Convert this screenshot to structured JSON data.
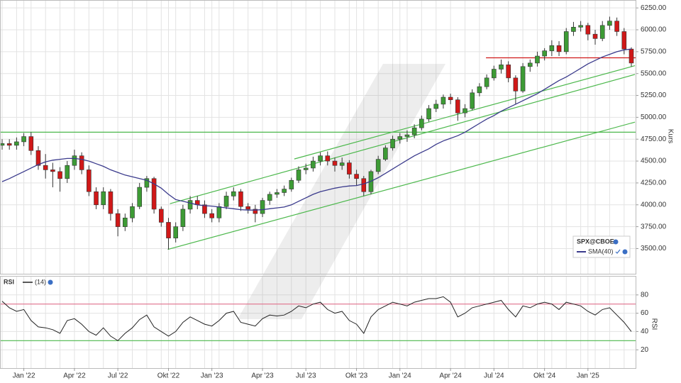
{
  "chart_data": [
    {
      "type": "candlestick",
      "categories": [
        null,
        null,
        null,
        "Jan '22",
        null,
        null,
        null,
        null,
        null,
        null,
        "Apr '22",
        null,
        null,
        null,
        null,
        null,
        "Jul '22",
        null,
        null,
        null,
        null,
        null,
        null,
        "Okt '22",
        null,
        null,
        null,
        null,
        null,
        "Jan '23",
        null,
        null,
        null,
        null,
        null,
        null,
        "Apr '23",
        null,
        null,
        null,
        null,
        null,
        "Jul '23",
        null,
        null,
        null,
        null,
        null,
        null,
        "Okt '23",
        null,
        null,
        null,
        null,
        null,
        "Jan '24",
        null,
        null,
        null,
        null,
        null,
        null,
        "Apr '24",
        null,
        null,
        null,
        null,
        null,
        "Jul '24",
        null,
        null,
        null,
        null,
        null,
        null,
        "Okt '24",
        null,
        null,
        null,
        null,
        null,
        "Jan '25",
        null,
        null,
        null,
        null,
        null,
        null
      ],
      "series": [
        {
          "name": "SPX@CBOE",
          "up_color": "#3d9b35",
          "down_color": "#d01818",
          "open": [
            4680,
            4700,
            4680,
            4720,
            4780,
            4620,
            4450,
            4400,
            4380,
            4300,
            4450,
            4560,
            4400,
            4150,
            4000,
            4150,
            3900,
            3750,
            3850,
            3980,
            4200,
            4300,
            3950,
            3800,
            3620,
            3750,
            3950,
            4050,
            4000,
            3900,
            3850,
            3980,
            4100,
            4150,
            3980,
            3950,
            3900,
            4050,
            4120,
            4140,
            4180,
            4280,
            4400,
            4420,
            4500,
            4560,
            4500,
            4450,
            4480,
            4350,
            4300,
            4150,
            4380,
            4520,
            4650,
            4750,
            4780,
            4800,
            4880,
            4980,
            5100,
            5150,
            5230,
            5200,
            5050,
            5100,
            5280,
            5350,
            5450,
            5550,
            5600,
            5450,
            5300,
            5580,
            5620,
            5700,
            5760,
            5820,
            5750,
            5980,
            6030,
            6050,
            5950,
            5900,
            6050,
            6100,
            5980,
            5780
          ],
          "high": [
            4750,
            4750,
            4770,
            4820,
            4830,
            4670,
            4580,
            4480,
            4430,
            4500,
            4630,
            4600,
            4450,
            4200,
            4200,
            4180,
            3950,
            3900,
            4020,
            4250,
            4330,
            4320,
            3980,
            3850,
            3800,
            4000,
            4100,
            4100,
            4050,
            3950,
            4020,
            4150,
            4200,
            4180,
            4020,
            4000,
            4080,
            4150,
            4180,
            4220,
            4310,
            4440,
            4470,
            4550,
            4600,
            4610,
            4540,
            4540,
            4510,
            4400,
            4330,
            4400,
            4560,
            4680,
            4790,
            4820,
            4850,
            4920,
            5020,
            5140,
            5200,
            5260,
            5270,
            5230,
            5150,
            5320,
            5390,
            5490,
            5590,
            5660,
            5640,
            5480,
            5620,
            5660,
            5750,
            5790,
            5880,
            5870,
            6020,
            6090,
            6100,
            6080,
            6000,
            6100,
            6150,
            6140,
            6020,
            5800
          ],
          "low": [
            4630,
            4630,
            4630,
            4670,
            4570,
            4400,
            4300,
            4200,
            4150,
            4250,
            4400,
            4350,
            4100,
            3950,
            3950,
            3820,
            3640,
            3700,
            3800,
            3950,
            4150,
            3900,
            3750,
            3490,
            3570,
            3700,
            3900,
            3950,
            3850,
            3800,
            3800,
            3950,
            4050,
            3930,
            3900,
            3800,
            3860,
            4000,
            4080,
            4100,
            4150,
            4250,
            4350,
            4380,
            4450,
            4450,
            4380,
            4400,
            4300,
            4220,
            4100,
            4120,
            4350,
            4500,
            4620,
            4700,
            4720,
            4760,
            4850,
            4950,
            5060,
            5100,
            5150,
            4960,
            5000,
            5080,
            5240,
            5320,
            5420,
            5500,
            5400,
            5150,
            5280,
            5520,
            5580,
            5650,
            5700,
            5700,
            5720,
            5930,
            5980,
            5880,
            5830,
            5870,
            6000,
            5930,
            5720,
            5580
          ],
          "close": [
            4700,
            4680,
            4720,
            4780,
            4620,
            4450,
            4400,
            4380,
            4300,
            4450,
            4560,
            4400,
            4150,
            4000,
            4150,
            3900,
            3750,
            3850,
            3980,
            4200,
            4300,
            3950,
            3800,
            3620,
            3750,
            3950,
            4050,
            4000,
            3900,
            3850,
            3980,
            4100,
            4150,
            3980,
            3950,
            3900,
            4050,
            4120,
            4140,
            4180,
            4280,
            4400,
            4420,
            4500,
            4560,
            4500,
            4450,
            4480,
            4350,
            4300,
            4150,
            4380,
            4520,
            4650,
            4750,
            4780,
            4800,
            4880,
            4980,
            5100,
            5150,
            5230,
            5200,
            5050,
            5100,
            5280,
            5350,
            5450,
            5550,
            5600,
            5450,
            5300,
            5580,
            5620,
            5700,
            5760,
            5820,
            5750,
            5980,
            6030,
            6050,
            5950,
            5900,
            6050,
            6100,
            5980,
            5780,
            5620
          ]
        },
        {
          "name": "SMA(40)",
          "type": "line",
          "color": "#3a3a8c",
          "values": [
            4265,
            4300,
            4340,
            4380,
            4420,
            4460,
            4490,
            4510,
            4520,
            4530,
            4530,
            4520,
            4500,
            4470,
            4440,
            4400,
            4370,
            4340,
            4320,
            4300,
            4280,
            4240,
            4190,
            4120,
            4060,
            4040,
            4020,
            4000,
            3990,
            3985,
            3975,
            3965,
            3955,
            3945,
            3940,
            3940,
            3945,
            3955,
            3965,
            3975,
            4000,
            4040,
            4080,
            4120,
            4150,
            4170,
            4190,
            4205,
            4215,
            4220,
            4240,
            4270,
            4310,
            4360,
            4410,
            4460,
            4510,
            4560,
            4600,
            4640,
            4690,
            4730,
            4760,
            4790,
            4830,
            4880,
            4930,
            4980,
            5020,
            5070,
            5110,
            5150,
            5190,
            5230,
            5270,
            5320,
            5370,
            5420,
            5460,
            5510,
            5560,
            5610,
            5650,
            5690,
            5720,
            5750,
            5770,
            5780
          ]
        }
      ],
      "ylim": [
        3220,
        6300
      ],
      "yticks": [
        {
          "value": 3500,
          "label": "3500.00"
        },
        {
          "value": 3750,
          "label": "3750.00"
        },
        {
          "value": 4000,
          "label": "4000.00"
        },
        {
          "value": 4250,
          "label": "4250.00"
        },
        {
          "value": 4500,
          "label": "4500.00"
        },
        {
          "value": 4750,
          "label": "4750.00"
        },
        {
          "value": 5000,
          "label": "5000.00"
        },
        {
          "value": 5250,
          "label": "5250.00"
        },
        {
          "value": 5500,
          "label": "5500.00"
        },
        {
          "value": 5750,
          "label": "5750.00"
        },
        {
          "value": 6000,
          "label": "6000.00"
        },
        {
          "value": 6250,
          "label": "6250.00"
        }
      ],
      "y_label": "Kurs",
      "grid": true,
      "hlines": [
        {
          "value": 4830,
          "color": "#4cb84c"
        },
        {
          "value": 5680,
          "color": "#d01818",
          "from": 66.9
        }
      ],
      "trendlines": [
        {
          "color": "#4cb84c",
          "start": [
            22.9,
            3490
          ],
          "end": [
            87.5,
            4945
          ]
        },
        {
          "color": "#4cb84c",
          "start": [
            23.2,
            4013
          ],
          "end": [
            87.5,
            5490
          ]
        },
        {
          "color": "#4cb84c",
          "start": [
            40.4,
            4524
          ],
          "end": [
            87.5,
            5590
          ]
        }
      ]
    },
    {
      "type": "line",
      "series": [
        {
          "name": "RSI",
          "label": "(14)",
          "color": "#222222",
          "values": [
            73,
            66,
            62,
            64,
            52,
            45,
            44,
            42,
            38,
            52,
            54,
            48,
            40,
            36,
            44,
            35,
            30,
            38,
            44,
            53,
            58,
            45,
            40,
            35,
            40,
            50,
            56,
            52,
            48,
            46,
            52,
            60,
            62,
            50,
            48,
            46,
            54,
            58,
            57,
            58,
            62,
            68,
            66,
            70,
            72,
            64,
            60,
            62,
            52,
            48,
            38,
            56,
            64,
            68,
            72,
            70,
            68,
            72,
            74,
            76,
            76,
            78,
            72,
            56,
            60,
            66,
            68,
            70,
            72,
            74,
            64,
            56,
            68,
            66,
            70,
            72,
            70,
            64,
            72,
            70,
            68,
            62,
            58,
            64,
            66,
            58,
            50,
            40
          ]
        }
      ],
      "ylim": [
        0,
        100
      ],
      "yticks": [
        20,
        40,
        60,
        80
      ],
      "y_label": "RSI",
      "grid": true,
      "hlines": [
        {
          "value": 70,
          "color": "#e0708c"
        },
        {
          "value": 30,
          "color": "#4cb84c"
        }
      ]
    }
  ]
}
